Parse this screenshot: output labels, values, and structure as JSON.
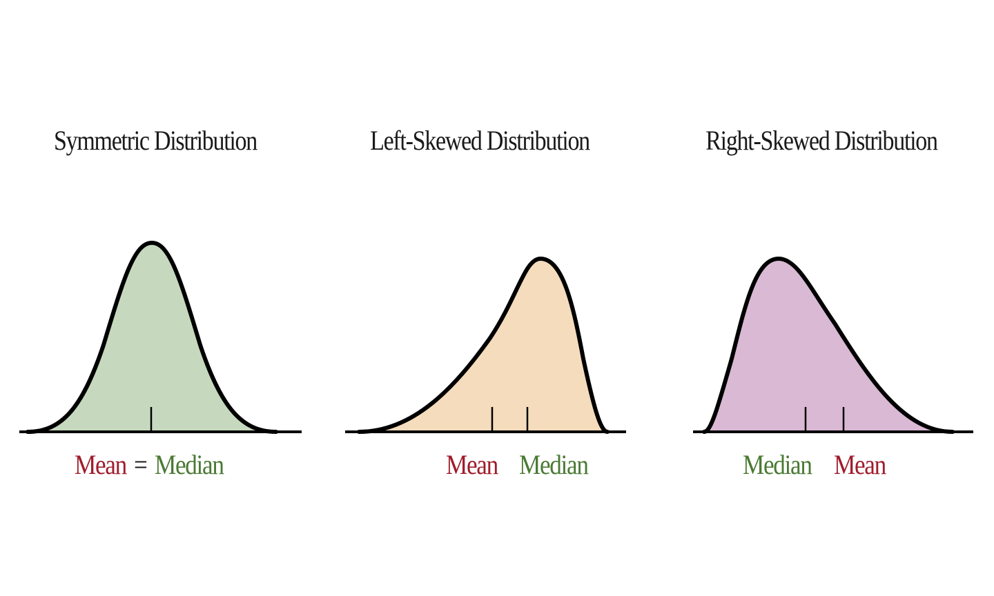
{
  "panels": [
    {
      "title": "Symmetric Distribution",
      "fill": "#c6d9bf",
      "labels": {
        "mean": "Mean",
        "equals": "=",
        "median": "Median"
      }
    },
    {
      "title": "Left-Skewed Distribution",
      "fill": "#f4dcbc",
      "labels": {
        "mean": "Mean",
        "median": "Median"
      }
    },
    {
      "title": "Right-Skewed Distribution",
      "fill": "#d9b9d3",
      "labels": {
        "median": "Median",
        "mean": "Mean"
      }
    }
  ],
  "colors": {
    "mean": "#a01c2c",
    "median": "#4a7a34",
    "outline": "#000000"
  }
}
